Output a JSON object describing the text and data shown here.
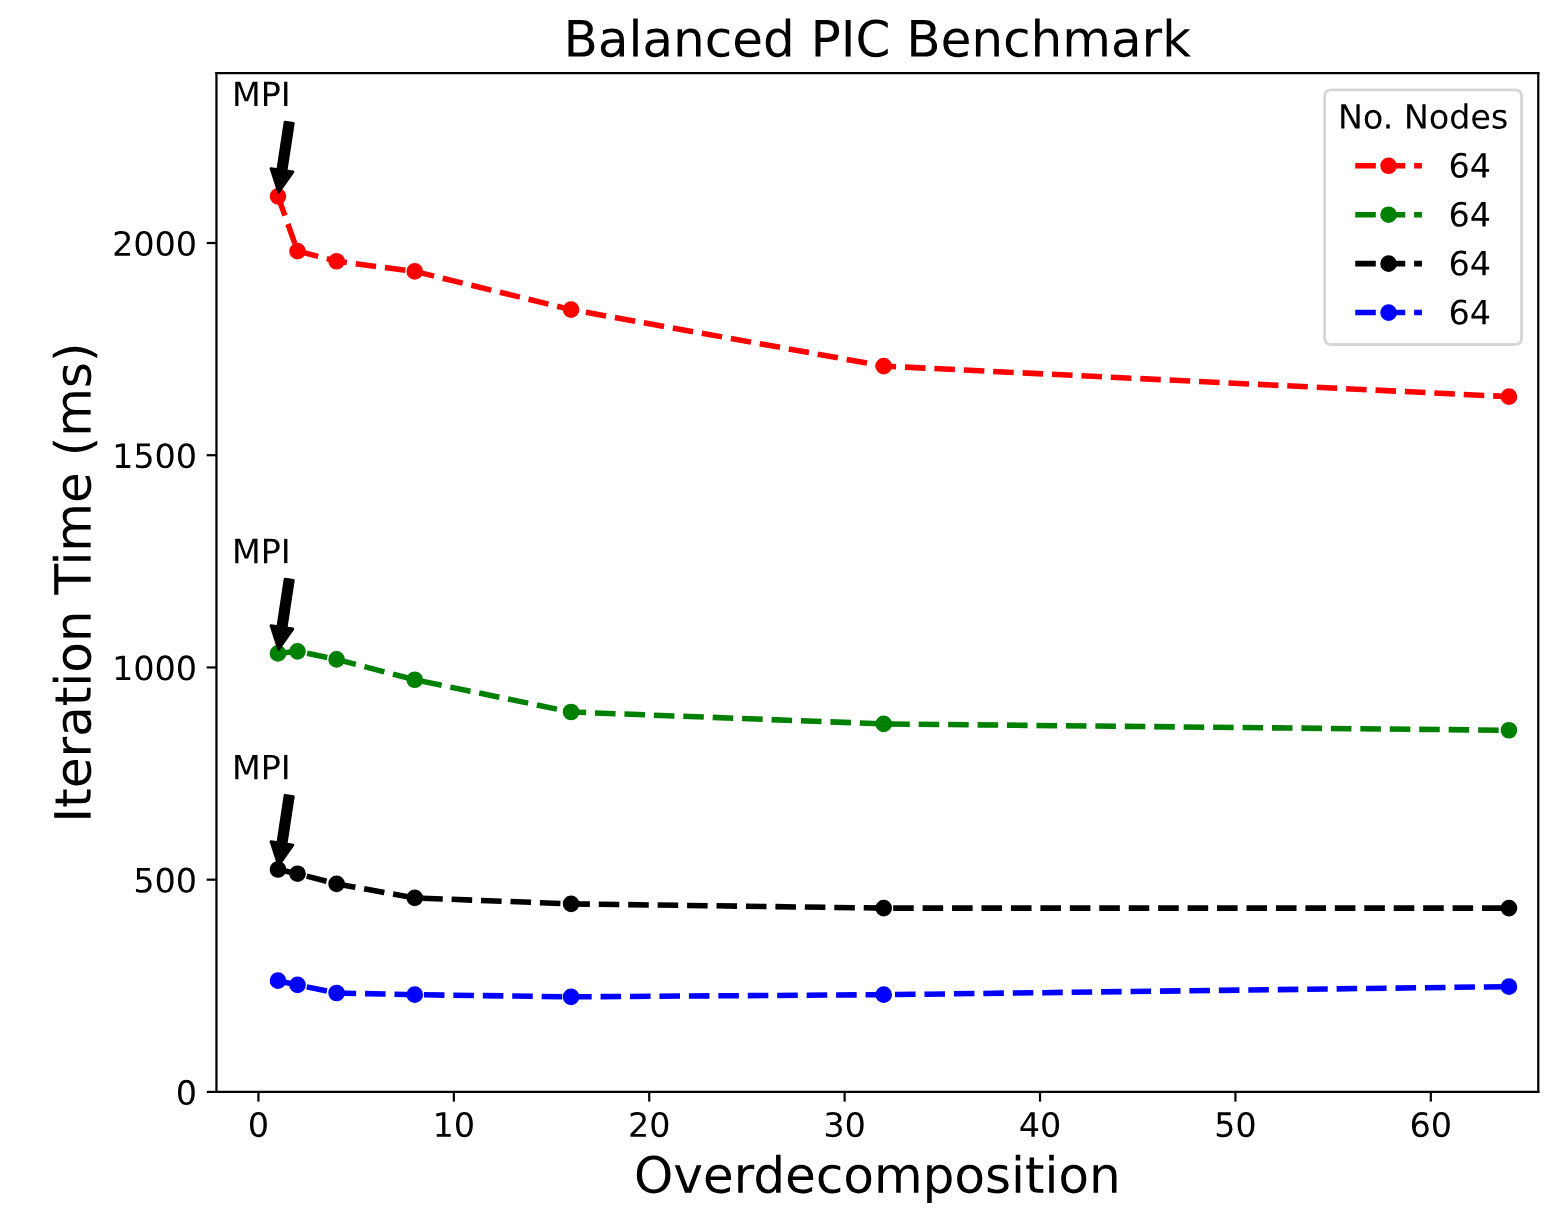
{
  "chart_data": {
    "type": "line",
    "title": "Balanced PIC Benchmark",
    "xlabel": "Overdecomposition",
    "ylabel": "Iteration Time (ms)",
    "legend_title": "No. Nodes",
    "x": [
      1,
      2,
      4,
      8,
      16,
      32,
      64
    ],
    "series": [
      {
        "name": "64",
        "color": "#ff0000",
        "values": [
          2110,
          1981,
          1957,
          1933,
          1843,
          1710,
          1638
        ]
      },
      {
        "name": "64",
        "color": "#008000",
        "values": [
          1033,
          1038,
          1019,
          971,
          895,
          867,
          852
        ]
      },
      {
        "name": "64",
        "color": "#000000",
        "values": [
          524,
          514,
          490,
          457,
          443,
          433,
          433
        ]
      },
      {
        "name": "64",
        "color": "#0000ff",
        "values": [
          262,
          252,
          233,
          229,
          224,
          229,
          248
        ]
      }
    ],
    "annotations": [
      "MPI",
      "MPI",
      "MPI"
    ],
    "xlim": [
      -2.15,
      65.5
    ],
    "ylim": [
      0,
      2400
    ],
    "xticks": [
      0,
      10,
      20,
      30,
      40,
      50,
      60
    ],
    "yticks": [
      0,
      500,
      1000,
      1500,
      2000
    ],
    "grid": false,
    "legend": "top right",
    "marker": "circle",
    "line_style": "dashed"
  }
}
